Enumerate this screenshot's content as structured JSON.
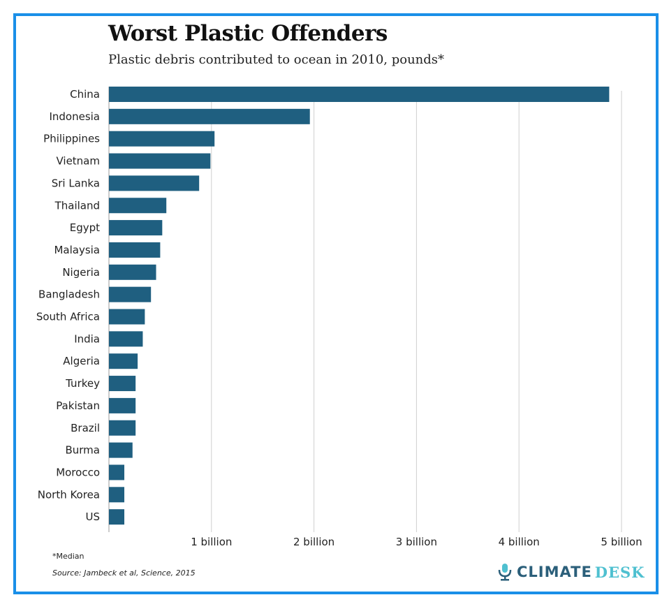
{
  "chart_data": {
    "type": "bar",
    "orientation": "horizontal",
    "title": "Worst Plastic Offenders",
    "subtitle": "Plastic debris contributed to ocean in 2010, pounds*",
    "categories": [
      "China",
      "Indonesia",
      "Philippines",
      "Vietnam",
      "Sri Lanka",
      "Thailand",
      "Egypt",
      "Malaysia",
      "Nigeria",
      "Bangladesh",
      "South Africa",
      "India",
      "Algeria",
      "Turkey",
      "Pakistan",
      "Brazil",
      "Burma",
      "Morocco",
      "North Korea",
      "US"
    ],
    "values": [
      4.88,
      1.96,
      1.03,
      0.99,
      0.88,
      0.56,
      0.52,
      0.5,
      0.46,
      0.41,
      0.35,
      0.33,
      0.28,
      0.26,
      0.26,
      0.26,
      0.23,
      0.15,
      0.15,
      0.15
    ],
    "value_unit": "billion pounds",
    "xlim": [
      0,
      5
    ],
    "x_ticks": [
      1,
      2,
      3,
      4,
      5
    ],
    "x_tick_labels": [
      "1 billion",
      "2 billion",
      "3 billion",
      "4 billion",
      "5 billion"
    ],
    "grid": "vertical",
    "bar_color": "#1f5f80",
    "note": "*Median",
    "source_prefix": "Source: ",
    "source_text": "Jambeck et al, Science, 2015"
  },
  "logo": {
    "part1": "CLIMATE",
    "part2": "DESK"
  },
  "frame_color": "#1a8fe8"
}
